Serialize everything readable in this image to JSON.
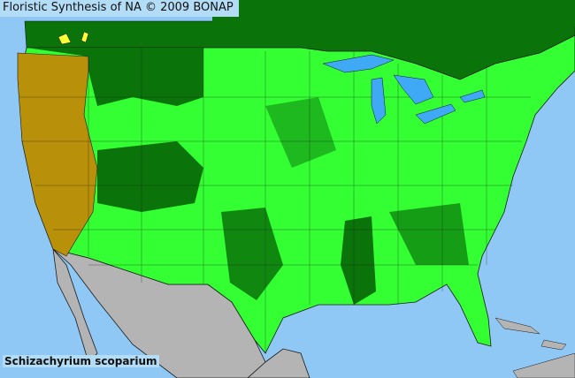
{
  "header": {
    "title": "Floristic Synthesis of NA © 2009 BONAP"
  },
  "species_label": "Schizachyrium scoparium",
  "colors": {
    "ocean": "#8fc8f5",
    "lakes": "#3fa9f5",
    "canada_non_us": "#0a730a",
    "present_native_county": "#33ff33",
    "present_state_not_county": "#0a730a",
    "noxious_or_rare": "#b8900a",
    "yellow_county": "#ffff33",
    "mexico": "#b4b4b4",
    "borders": "#1a1a1a"
  }
}
